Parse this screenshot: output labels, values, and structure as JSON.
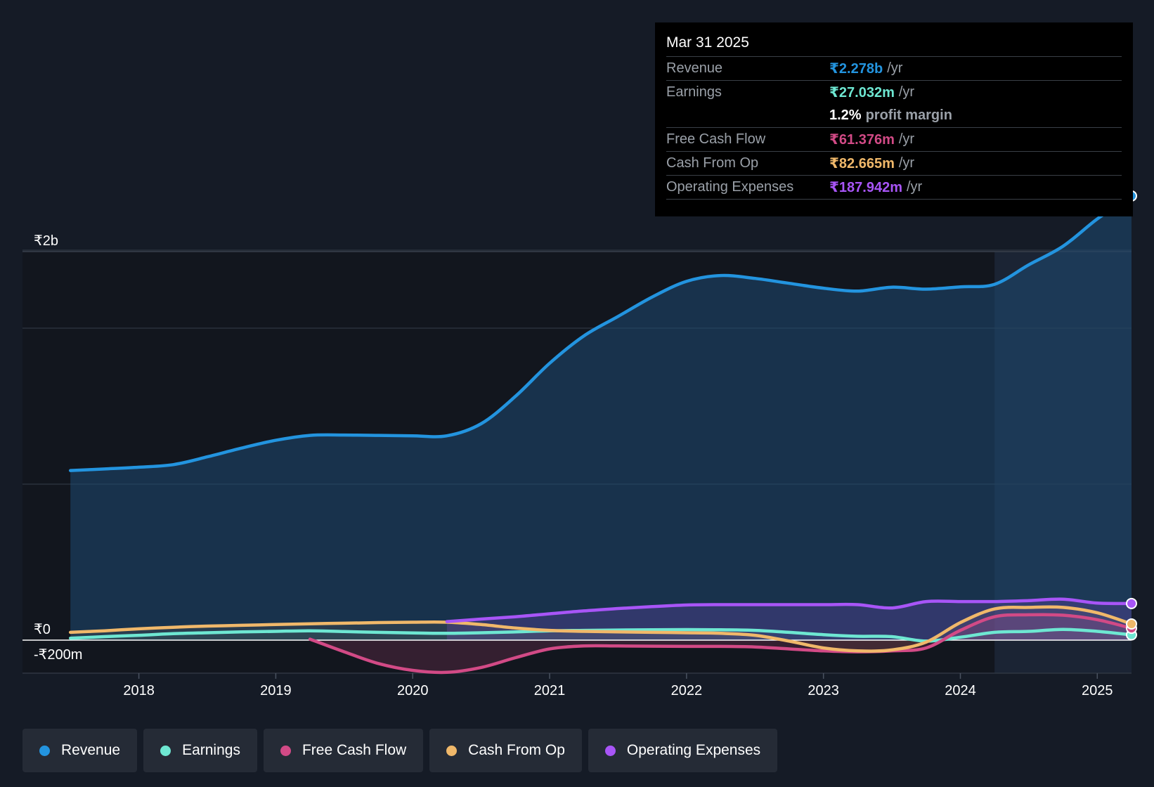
{
  "tooltip": {
    "date": "Mar 31 2025",
    "rows": [
      {
        "label": "Revenue",
        "value": "₹2.278b",
        "unit": "/yr",
        "color": "#2394df"
      },
      {
        "label": "Earnings",
        "value": "₹27.032m",
        "unit": "/yr",
        "color": "#6ee7d2"
      },
      {
        "label": "Free Cash Flow",
        "value": "₹61.376m",
        "unit": "/yr",
        "color": "#d24a86"
      },
      {
        "label": "Cash From Op",
        "value": "₹82.665m",
        "unit": "/yr",
        "color": "#f0b86a"
      },
      {
        "label": "Operating Expenses",
        "value": "₹187.942m",
        "unit": "/yr",
        "color": "#a855f7"
      }
    ],
    "profit_margin_value": "1.2%",
    "profit_margin_label": "profit margin"
  },
  "legend": [
    {
      "label": "Revenue",
      "color": "#2394df"
    },
    {
      "label": "Earnings",
      "color": "#6ee7d2"
    },
    {
      "label": "Free Cash Flow",
      "color": "#d24a86"
    },
    {
      "label": "Cash From Op",
      "color": "#f0b86a"
    },
    {
      "label": "Operating Expenses",
      "color": "#a855f7"
    }
  ],
  "chart_data": {
    "type": "area",
    "units": "₹ millions",
    "y_tick_labels": [
      "₹2b",
      "₹0",
      "-₹200m"
    ],
    "ylim": [
      -200,
      2400
    ],
    "xlim": [
      2017.15,
      2025.25
    ],
    "x_ticks": [
      2018,
      2019,
      2020,
      2021,
      2022,
      2023,
      2024,
      2025
    ],
    "x_tick_labels": [
      "2018",
      "2019",
      "2020",
      "2021",
      "2022",
      "2023",
      "2024",
      "2025"
    ],
    "forecast_highlight_start": 2024.25,
    "series": [
      {
        "name": "Revenue",
        "color": "#2394df",
        "points": [
          [
            2017.5,
            870
          ],
          [
            2017.75,
            878
          ],
          [
            2018.0,
            887
          ],
          [
            2018.25,
            900
          ],
          [
            2018.5,
            940
          ],
          [
            2018.75,
            985
          ],
          [
            2019.0,
            1025
          ],
          [
            2019.25,
            1050
          ],
          [
            2019.5,
            1052
          ],
          [
            2019.75,
            1050
          ],
          [
            2020.0,
            1048
          ],
          [
            2020.25,
            1048
          ],
          [
            2020.5,
            1110
          ],
          [
            2020.75,
            1250
          ],
          [
            2021.0,
            1420
          ],
          [
            2021.25,
            1560
          ],
          [
            2021.5,
            1660
          ],
          [
            2021.75,
            1760
          ],
          [
            2022.0,
            1840
          ],
          [
            2022.25,
            1870
          ],
          [
            2022.5,
            1855
          ],
          [
            2022.75,
            1830
          ],
          [
            2023.0,
            1805
          ],
          [
            2023.25,
            1790
          ],
          [
            2023.5,
            1810
          ],
          [
            2023.75,
            1800
          ],
          [
            2024.0,
            1812
          ],
          [
            2024.25,
            1825
          ],
          [
            2024.5,
            1925
          ],
          [
            2024.75,
            2020
          ],
          [
            2025.0,
            2160
          ],
          [
            2025.25,
            2278
          ]
        ]
      },
      {
        "name": "Earnings",
        "color": "#6ee7d2",
        "points": [
          [
            2017.5,
            10
          ],
          [
            2017.75,
            18
          ],
          [
            2018.0,
            25
          ],
          [
            2018.25,
            33
          ],
          [
            2018.5,
            38
          ],
          [
            2018.75,
            42
          ],
          [
            2019.0,
            45
          ],
          [
            2019.25,
            48
          ],
          [
            2019.5,
            44
          ],
          [
            2019.75,
            40
          ],
          [
            2020.0,
            37
          ],
          [
            2020.25,
            35
          ],
          [
            2020.5,
            38
          ],
          [
            2020.75,
            42
          ],
          [
            2021.0,
            48
          ],
          [
            2021.25,
            50
          ],
          [
            2021.5,
            52
          ],
          [
            2021.75,
            53
          ],
          [
            2022.0,
            54
          ],
          [
            2022.25,
            53
          ],
          [
            2022.5,
            50
          ],
          [
            2022.75,
            40
          ],
          [
            2023.0,
            28
          ],
          [
            2023.25,
            20
          ],
          [
            2023.5,
            18
          ],
          [
            2023.75,
            -5
          ],
          [
            2024.0,
            15
          ],
          [
            2024.25,
            40
          ],
          [
            2024.5,
            45
          ],
          [
            2024.75,
            55
          ],
          [
            2025.0,
            45
          ],
          [
            2025.25,
            27
          ]
        ]
      },
      {
        "name": "Free Cash Flow",
        "color": "#d24a86",
        "points": [
          [
            2019.25,
            5
          ],
          [
            2019.5,
            -60
          ],
          [
            2019.75,
            -120
          ],
          [
            2020.0,
            -155
          ],
          [
            2020.25,
            -165
          ],
          [
            2020.5,
            -140
          ],
          [
            2020.75,
            -90
          ],
          [
            2021.0,
            -45
          ],
          [
            2021.25,
            -30
          ],
          [
            2021.5,
            -30
          ],
          [
            2021.75,
            -31
          ],
          [
            2022.0,
            -32
          ],
          [
            2022.25,
            -32
          ],
          [
            2022.5,
            -35
          ],
          [
            2022.75,
            -45
          ],
          [
            2023.0,
            -55
          ],
          [
            2023.25,
            -60
          ],
          [
            2023.5,
            -55
          ],
          [
            2023.75,
            -40
          ],
          [
            2024.0,
            50
          ],
          [
            2024.25,
            120
          ],
          [
            2024.5,
            130
          ],
          [
            2024.75,
            128
          ],
          [
            2025.0,
            105
          ],
          [
            2025.25,
            61
          ]
        ]
      },
      {
        "name": "Cash From Op",
        "color": "#f0b86a",
        "points": [
          [
            2017.5,
            40
          ],
          [
            2017.75,
            48
          ],
          [
            2018.0,
            58
          ],
          [
            2018.25,
            66
          ],
          [
            2018.5,
            72
          ],
          [
            2018.75,
            76
          ],
          [
            2019.0,
            80
          ],
          [
            2019.25,
            84
          ],
          [
            2019.5,
            87
          ],
          [
            2019.75,
            90
          ],
          [
            2020.0,
            92
          ],
          [
            2020.25,
            92
          ],
          [
            2020.5,
            80
          ],
          [
            2020.75,
            62
          ],
          [
            2021.0,
            50
          ],
          [
            2021.25,
            45
          ],
          [
            2021.5,
            42
          ],
          [
            2021.75,
            40
          ],
          [
            2022.0,
            38
          ],
          [
            2022.25,
            35
          ],
          [
            2022.5,
            25
          ],
          [
            2022.75,
            -5
          ],
          [
            2023.0,
            -40
          ],
          [
            2023.25,
            -55
          ],
          [
            2023.5,
            -50
          ],
          [
            2023.75,
            -10
          ],
          [
            2024.0,
            90
          ],
          [
            2024.25,
            160
          ],
          [
            2024.5,
            168
          ],
          [
            2024.75,
            168
          ],
          [
            2025.0,
            140
          ],
          [
            2025.25,
            83
          ]
        ]
      },
      {
        "name": "Operating Expenses",
        "color": "#a855f7",
        "points": [
          [
            2020.25,
            95
          ],
          [
            2020.5,
            108
          ],
          [
            2020.75,
            120
          ],
          [
            2021.0,
            135
          ],
          [
            2021.25,
            150
          ],
          [
            2021.5,
            162
          ],
          [
            2021.75,
            172
          ],
          [
            2022.0,
            180
          ],
          [
            2022.25,
            182
          ],
          [
            2022.5,
            182
          ],
          [
            2022.75,
            182
          ],
          [
            2023.0,
            182
          ],
          [
            2023.25,
            182
          ],
          [
            2023.5,
            165
          ],
          [
            2023.75,
            198
          ],
          [
            2024.0,
            198
          ],
          [
            2024.25,
            198
          ],
          [
            2024.5,
            203
          ],
          [
            2024.75,
            210
          ],
          [
            2025.0,
            190
          ],
          [
            2025.25,
            188
          ]
        ]
      }
    ]
  }
}
